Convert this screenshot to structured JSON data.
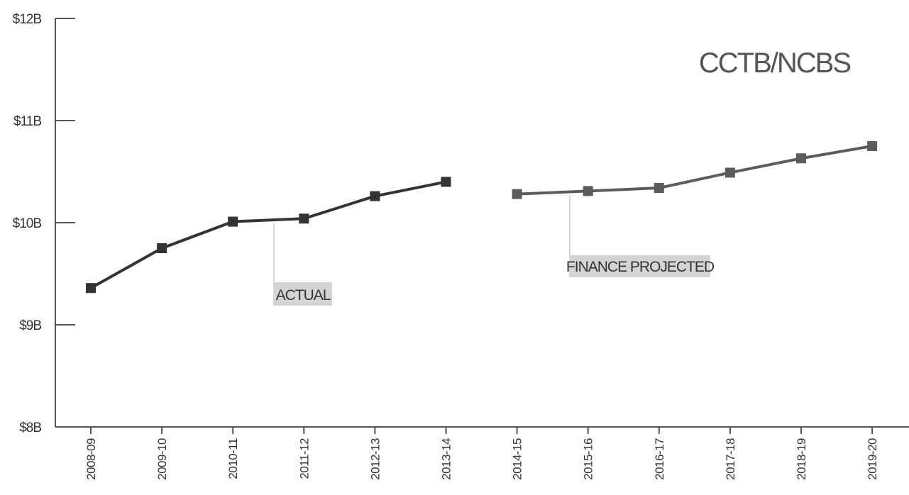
{
  "chart_data": {
    "type": "line",
    "title": "CCTB/NCBS",
    "xlabel": "",
    "ylabel": "",
    "categories": [
      "2008-09",
      "2009-10",
      "2010-11",
      "2011-12",
      "2012-13",
      "2013-14",
      "2014-15",
      "2015-16",
      "2016-17",
      "2017-18",
      "2018-19",
      "2019-20"
    ],
    "ylim": [
      8,
      12
    ],
    "y_ticks": [
      {
        "value": 8,
        "label": "$8B"
      },
      {
        "value": 9,
        "label": "$9B"
      },
      {
        "value": 10,
        "label": "$10B"
      },
      {
        "value": 11,
        "label": "$11B"
      },
      {
        "value": 12,
        "label": "$12B"
      }
    ],
    "grid": false,
    "legend": "none",
    "series": [
      {
        "name": "ACTUAL",
        "color": "#333333",
        "x": [
          "2008-09",
          "2009-10",
          "2010-11",
          "2011-12",
          "2012-13",
          "2013-14"
        ],
        "values": [
          9.36,
          9.75,
          10.01,
          10.04,
          10.26,
          10.4
        ]
      },
      {
        "name": "FINANCE PROJECTED",
        "color": "#5c5c5c",
        "x": [
          "2014-15",
          "2015-16",
          "2016-17",
          "2017-18",
          "2018-19",
          "2019-20"
        ],
        "values": [
          10.28,
          10.31,
          10.34,
          10.49,
          10.63,
          10.75
        ]
      }
    ],
    "annotations": [
      {
        "text": "ACTUAL",
        "series": 0,
        "anchor_between": [
          "2010-11",
          "2011-12"
        ]
      },
      {
        "text": "FINANCE PROJECTED",
        "series": 1,
        "anchor_between": [
          "2014-15",
          "2015-16"
        ]
      }
    ]
  }
}
